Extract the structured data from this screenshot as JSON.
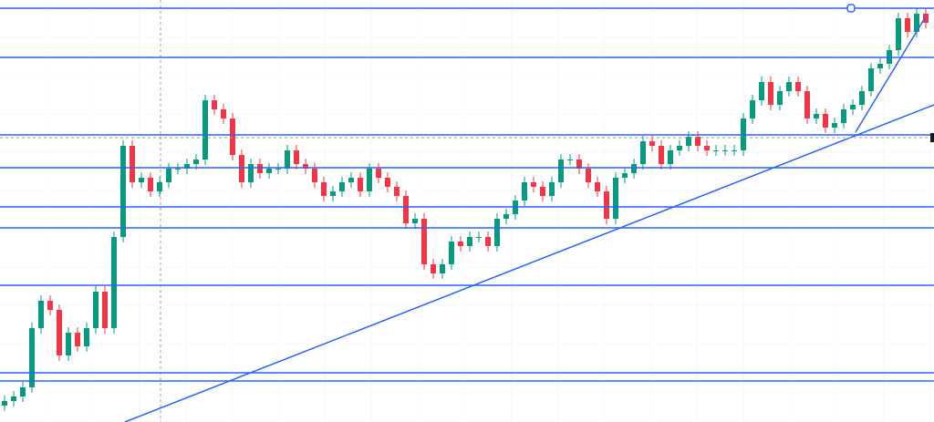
{
  "chart_data": {
    "type": "candlestick",
    "open": [
      18,
      23,
      28,
      38,
      103,
      133,
      123,
      73,
      98,
      83,
      103,
      143,
      103,
      203,
      303,
      263,
      268,
      253,
      263,
      278,
      278,
      283,
      288,
      353,
      343,
      333,
      293,
      263,
      283,
      273,
      278,
      278,
      298,
      283,
      278,
      263,
      248,
      253,
      263,
      268,
      253,
      278,
      268,
      258,
      248,
      218,
      223,
      173,
      163,
      173,
      198,
      193,
      203,
      203,
      193,
      223,
      228,
      243,
      263,
      258,
      248,
      263,
      288,
      288,
      278,
      263,
      253,
      223,
      268,
      273,
      283,
      308,
      303,
      283,
      298,
      303,
      313,
      303,
      298,
      298,
      298,
      298,
      333,
      353,
      373,
      348,
      363,
      373,
      363,
      333,
      338,
      323,
      328,
      343,
      348,
      363,
      388,
      393,
      408,
      443,
      428,
      448
    ],
    "high": [
      29,
      34,
      44,
      109,
      139,
      139,
      129,
      104,
      104,
      109,
      149,
      149,
      209,
      309,
      309,
      274,
      274,
      269,
      284,
      284,
      289,
      294,
      359,
      359,
      349,
      339,
      299,
      289,
      289,
      284,
      284,
      304,
      304,
      289,
      284,
      269,
      259,
      269,
      274,
      274,
      284,
      284,
      274,
      264,
      254,
      229,
      229,
      179,
      179,
      204,
      204,
      209,
      209,
      209,
      229,
      234,
      249,
      269,
      269,
      264,
      269,
      294,
      294,
      294,
      284,
      269,
      259,
      274,
      279,
      289,
      314,
      314,
      309,
      304,
      309,
      319,
      319,
      309,
      304,
      304,
      304,
      339,
      359,
      379,
      379,
      369,
      379,
      379,
      369,
      344,
      344,
      334,
      349,
      354,
      369,
      394,
      399,
      414,
      449,
      449,
      454,
      454
    ],
    "low": [
      12,
      17,
      22,
      32,
      97,
      117,
      67,
      67,
      77,
      77,
      97,
      97,
      97,
      197,
      257,
      257,
      247,
      247,
      257,
      272,
      272,
      277,
      282,
      337,
      327,
      287,
      257,
      257,
      267,
      267,
      272,
      272,
      277,
      272,
      257,
      242,
      242,
      247,
      257,
      247,
      247,
      262,
      252,
      242,
      212,
      212,
      167,
      157,
      157,
      167,
      187,
      187,
      197,
      187,
      187,
      217,
      222,
      237,
      252,
      242,
      242,
      257,
      282,
      272,
      257,
      247,
      217,
      217,
      262,
      267,
      277,
      297,
      277,
      277,
      292,
      297,
      297,
      292,
      292,
      292,
      292,
      292,
      327,
      347,
      342,
      342,
      357,
      357,
      327,
      327,
      317,
      317,
      322,
      337,
      342,
      357,
      382,
      387,
      402,
      422,
      422,
      432
    ],
    "close": [
      23,
      28,
      38,
      103,
      133,
      123,
      73,
      98,
      83,
      103,
      143,
      103,
      203,
      303,
      263,
      268,
      253,
      263,
      278,
      278,
      283,
      288,
      353,
      343,
      333,
      293,
      263,
      283,
      273,
      278,
      278,
      298,
      283,
      278,
      263,
      248,
      253,
      263,
      268,
      253,
      278,
      268,
      258,
      248,
      218,
      223,
      173,
      163,
      173,
      198,
      193,
      203,
      203,
      193,
      223,
      228,
      243,
      263,
      258,
      248,
      263,
      288,
      288,
      278,
      263,
      253,
      223,
      268,
      273,
      283,
      308,
      303,
      283,
      298,
      303,
      313,
      303,
      298,
      298,
      298,
      298,
      333,
      353,
      373,
      348,
      363,
      373,
      363,
      333,
      338,
      323,
      328,
      343,
      348,
      363,
      388,
      393,
      408,
      443,
      428,
      448,
      438
    ],
    "up_color": "#089981",
    "down_color": "#f23645",
    "xlim": [
      -0.5,
      101.9
    ],
    "ylim": [
      0,
      463
    ],
    "levels": [
      454,
      400,
      315,
      279,
      236,
      213,
      150,
      54,
      45
    ],
    "level_color": "#2962ff",
    "trendlines": [
      {
        "x": [
          13.2,
          101.9
        ],
        "y": [
          0,
          348
        ]
      },
      {
        "x": [
          93.3,
          101.0
        ],
        "y": [
          318,
          445
        ]
      }
    ],
    "current_price": 312,
    "crosshair_x": 17.1,
    "grid": true
  }
}
